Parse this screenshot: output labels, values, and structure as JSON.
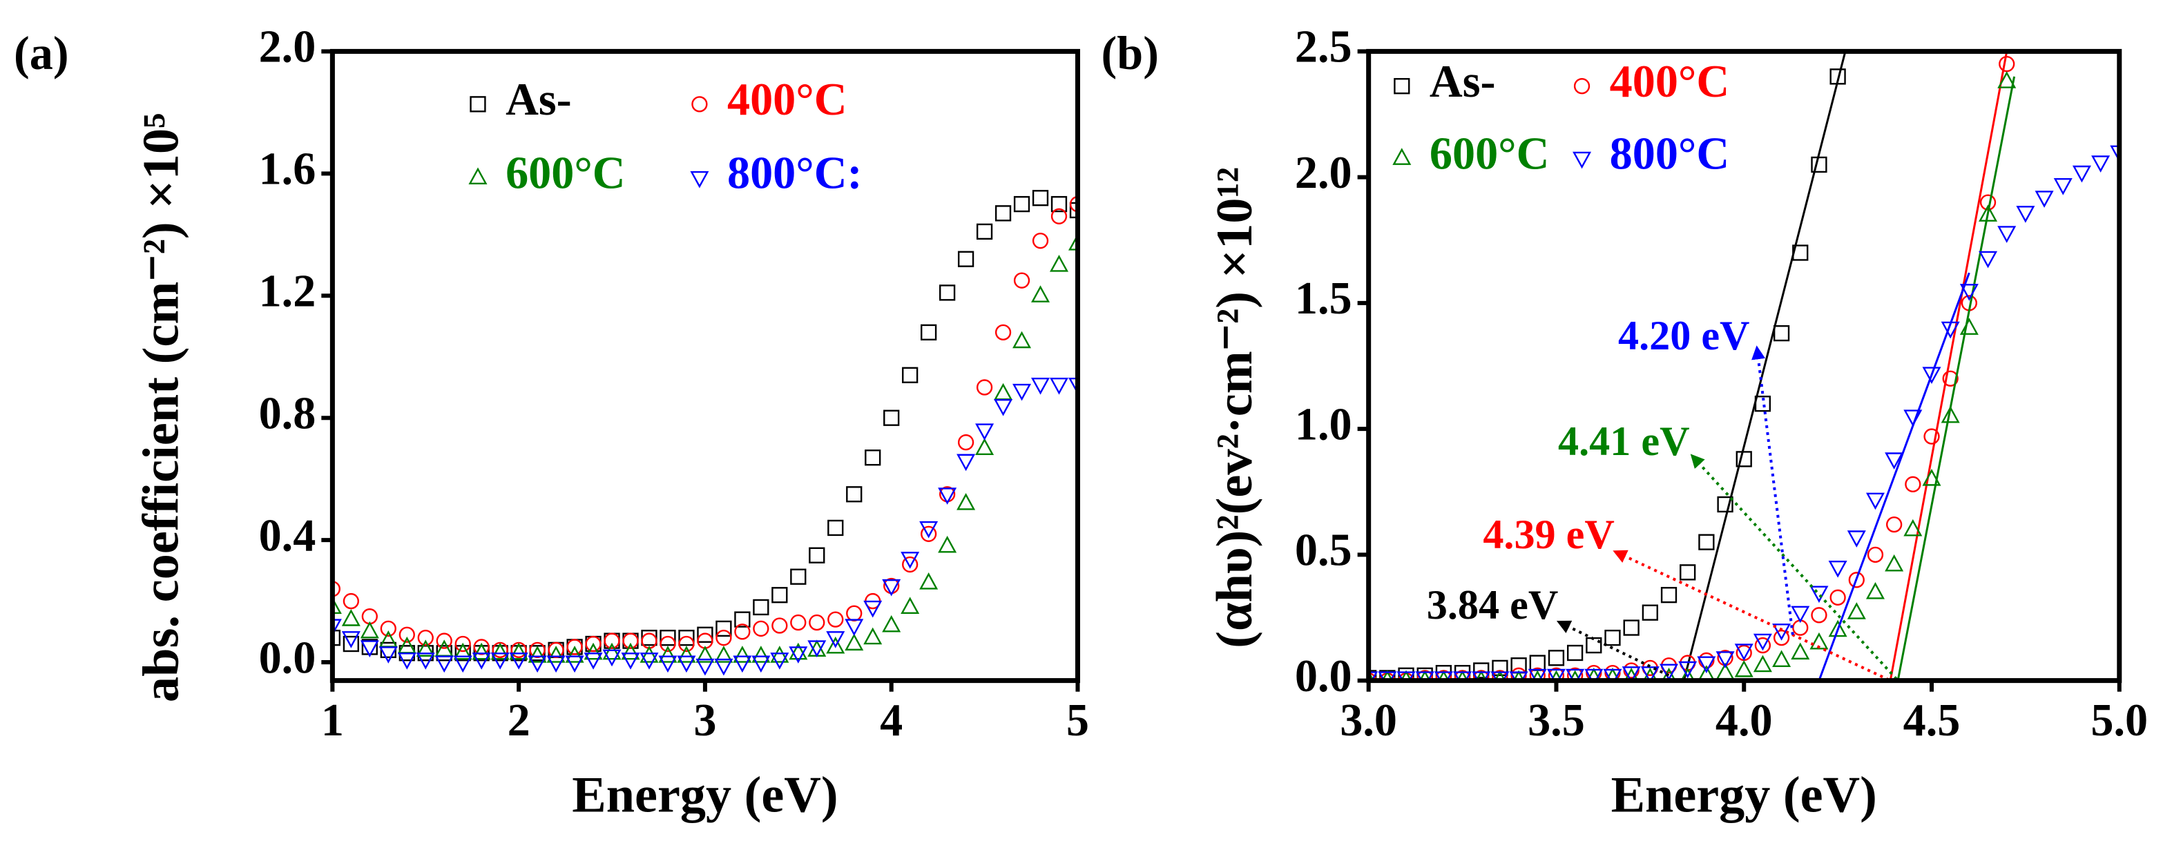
{
  "chart_data": [
    {
      "type": "scatter",
      "panel_label": "(a)",
      "xlabel": "Energy (eV)",
      "ylabel": "abs. coefficient (cm⁻²) ×10⁵",
      "xlim": [
        1,
        5
      ],
      "ylim": [
        -0.06,
        2.0
      ],
      "xticks": [
        1,
        2,
        3,
        4,
        5
      ],
      "yticks": [
        {
          "value": 0,
          "label": "0.0"
        },
        0.4,
        0.8,
        {
          "value": 1.2,
          "label": "1.2"
        },
        {
          "value": 1.6,
          "label": "1.6"
        },
        {
          "value": 2.0,
          "label": "2.0"
        }
      ],
      "x": [
        1.0,
        1.1,
        1.2,
        1.3,
        1.4,
        1.5,
        1.6,
        1.7,
        1.8,
        1.9,
        2.0,
        2.1,
        2.2,
        2.3,
        2.4,
        2.5,
        2.6,
        2.7,
        2.8,
        2.9,
        3.0,
        3.1,
        3.2,
        3.3,
        3.4,
        3.5,
        3.6,
        3.7,
        3.8,
        3.9,
        4.0,
        4.1,
        4.2,
        4.3,
        4.4,
        4.5,
        4.6,
        4.7,
        4.8,
        4.9,
        5.0
      ],
      "series": [
        {
          "name": "As-",
          "color": "#000000",
          "marker": "square",
          "values": [
            0.08,
            0.06,
            0.05,
            0.04,
            0.03,
            0.03,
            0.03,
            0.03,
            0.03,
            0.03,
            0.03,
            0.03,
            0.04,
            0.05,
            0.06,
            0.07,
            0.07,
            0.08,
            0.08,
            0.08,
            0.09,
            0.11,
            0.14,
            0.18,
            0.22,
            0.28,
            0.35,
            0.44,
            0.55,
            0.67,
            0.8,
            0.94,
            1.08,
            1.21,
            1.32,
            1.41,
            1.47,
            1.5,
            1.52,
            1.5,
            1.48
          ]
        },
        {
          "name": "400°C",
          "color": "#ff0000",
          "marker": "circle",
          "values": [
            0.24,
            0.2,
            0.15,
            0.11,
            0.09,
            0.08,
            0.07,
            0.06,
            0.05,
            0.04,
            0.04,
            0.04,
            0.04,
            0.05,
            0.06,
            0.07,
            0.07,
            0.07,
            0.06,
            0.06,
            0.07,
            0.08,
            0.1,
            0.11,
            0.12,
            0.13,
            0.13,
            0.14,
            0.16,
            0.2,
            0.25,
            0.32,
            0.42,
            0.55,
            0.72,
            0.9,
            1.08,
            1.25,
            1.38,
            1.46,
            1.5
          ]
        },
        {
          "name": "600°C",
          "color": "#008000",
          "marker": "triangle-up",
          "values": [
            0.18,
            0.14,
            0.1,
            0.07,
            0.05,
            0.04,
            0.04,
            0.03,
            0.03,
            0.03,
            0.03,
            0.02,
            0.02,
            0.02,
            0.03,
            0.03,
            0.03,
            0.02,
            0.02,
            0.02,
            0.02,
            0.02,
            0.02,
            0.02,
            0.02,
            0.03,
            0.04,
            0.05,
            0.06,
            0.08,
            0.12,
            0.18,
            0.26,
            0.38,
            0.52,
            0.7,
            0.88,
            1.05,
            1.2,
            1.3,
            1.37
          ]
        },
        {
          "name": "800°C:",
          "color": "#0000ff",
          "marker": "triangle-down",
          "values": [
            0.12,
            0.08,
            0.05,
            0.03,
            0.01,
            0.01,
            0.0,
            0.0,
            0.01,
            0.01,
            0.01,
            0.0,
            0.0,
            0.0,
            0.01,
            0.02,
            0.01,
            0.01,
            0.0,
            0.0,
            -0.01,
            -0.01,
            0.0,
            0.0,
            0.01,
            0.03,
            0.05,
            0.08,
            0.12,
            0.18,
            0.25,
            0.34,
            0.44,
            0.55,
            0.66,
            0.76,
            0.84,
            0.89,
            0.91,
            0.91,
            0.91
          ]
        }
      ]
    },
    {
      "type": "scatter",
      "panel_label": "(b)",
      "xlabel": "Energy (eV)",
      "ylabel": "(αhυ)²(ev²·cm⁻²) ×10¹²",
      "xlim": [
        3.0,
        5.0
      ],
      "ylim": [
        0,
        2.5
      ],
      "xticks": [
        {
          "value": 3.0,
          "label": "3.0"
        },
        3.5,
        {
          "value": 4.0,
          "label": "4.0"
        },
        4.5,
        {
          "value": 5.0,
          "label": "5.0"
        }
      ],
      "yticks": [
        {
          "value": 0,
          "label": "0.0"
        },
        0.5,
        {
          "value": 1.0,
          "label": "1.0"
        },
        1.5,
        {
          "value": 2.0,
          "label": "2.0"
        },
        2.5
      ],
      "x": [
        3.0,
        3.05,
        3.1,
        3.15,
        3.2,
        3.25,
        3.3,
        3.35,
        3.4,
        3.45,
        3.5,
        3.55,
        3.6,
        3.65,
        3.7,
        3.75,
        3.8,
        3.85,
        3.9,
        3.95,
        4.0,
        4.05,
        4.1,
        4.15,
        4.2,
        4.25,
        4.3,
        4.35,
        4.4,
        4.45,
        4.5,
        4.55,
        4.6,
        4.65,
        4.7,
        4.75,
        4.8,
        4.85,
        4.9,
        4.95,
        5.0
      ],
      "series": [
        {
          "name": "As-",
          "color": "#000000",
          "marker": "square",
          "values": [
            0.01,
            0.01,
            0.02,
            0.02,
            0.03,
            0.03,
            0.04,
            0.05,
            0.06,
            0.07,
            0.09,
            0.11,
            0.14,
            0.17,
            0.21,
            0.27,
            0.34,
            0.43,
            0.55,
            0.7,
            0.88,
            1.1,
            1.38,
            1.7,
            2.05,
            2.4,
            null,
            null,
            null,
            null,
            null,
            null,
            null,
            null,
            null,
            null,
            null,
            null,
            null,
            null,
            null
          ],
          "fit": {
            "x": [
              3.84,
              4.27
            ],
            "y": [
              0,
              2.5
            ]
          }
        },
        {
          "name": "400°C",
          "color": "#ff0000",
          "marker": "circle",
          "values": [
            0.0,
            0.0,
            0.0,
            0.01,
            0.01,
            0.01,
            0.01,
            0.01,
            0.02,
            0.02,
            0.02,
            0.02,
            0.03,
            0.03,
            0.04,
            0.05,
            0.06,
            0.07,
            0.08,
            0.09,
            0.11,
            0.14,
            0.17,
            0.21,
            0.26,
            0.33,
            0.4,
            0.5,
            0.62,
            0.78,
            0.97,
            1.2,
            1.5,
            1.9,
            2.45,
            null,
            null,
            null,
            null,
            null,
            null
          ],
          "fit": {
            "x": [
              4.39,
              4.7
            ],
            "y": [
              0,
              2.5
            ]
          }
        },
        {
          "name": "600°C",
          "color": "#008000",
          "marker": "triangle-up",
          "values": [
            0.0,
            0.0,
            0.0,
            0.0,
            0.0,
            0.0,
            0.0,
            0.0,
            0.0,
            0.0,
            0.0,
            0.0,
            0.01,
            0.01,
            0.01,
            0.01,
            0.01,
            0.01,
            0.02,
            0.03,
            0.04,
            0.06,
            0.08,
            0.11,
            0.15,
            0.2,
            0.27,
            0.35,
            0.46,
            0.6,
            0.8,
            1.05,
            1.4,
            1.85,
            2.38,
            null,
            null,
            null,
            null,
            null,
            null
          ],
          "fit": {
            "x": [
              4.41,
              4.72
            ],
            "y": [
              0,
              2.4
            ]
          }
        },
        {
          "name": "800°C",
          "color": "#0000ff",
          "marker": "triangle-down",
          "values": [
            0.01,
            0.01,
            0.01,
            0.01,
            0.01,
            0.01,
            0.01,
            0.01,
            0.01,
            0.02,
            0.02,
            0.02,
            0.02,
            0.02,
            0.03,
            0.03,
            0.04,
            0.05,
            0.07,
            0.09,
            0.12,
            0.16,
            0.2,
            0.27,
            0.35,
            0.45,
            0.57,
            0.72,
            0.88,
            1.05,
            1.22,
            1.4,
            1.55,
            1.68,
            1.78,
            1.86,
            1.92,
            1.97,
            2.02,
            2.06,
            2.1
          ],
          "fit": {
            "x": [
              4.2,
              4.6
            ],
            "y": [
              0,
              1.62
            ]
          }
        }
      ],
      "annotations": [
        {
          "text": "3.84 eV",
          "color": "#000000",
          "xytext": [
            3.52,
            0.24
          ],
          "xy": [
            3.8,
            0.02
          ]
        },
        {
          "text": "4.39 eV",
          "color": "#ff0000",
          "xytext": [
            3.67,
            0.52
          ],
          "xy": [
            4.39,
            0.0
          ]
        },
        {
          "text": "4.41 eV",
          "color": "#008000",
          "xytext": [
            3.87,
            0.89
          ],
          "xy": [
            4.41,
            0.0
          ]
        },
        {
          "text": "4.20 eV",
          "color": "#0000ff",
          "xytext": [
            4.03,
            1.31
          ],
          "xy": [
            4.13,
            0.18
          ]
        }
      ]
    }
  ]
}
